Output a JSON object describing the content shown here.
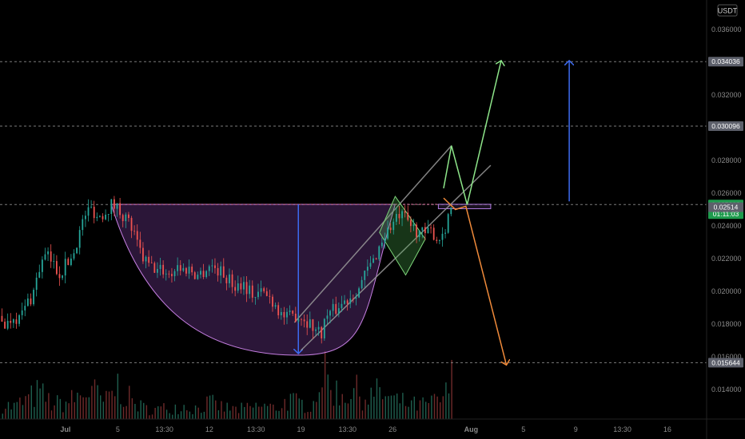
{
  "chart_data": {
    "type": "candlestick",
    "currency": "USDT",
    "y_range": [
      0.0122,
      0.0378
    ],
    "y_ticks": [
      "0.036000",
      "0.034000",
      "0.032000",
      "0.030000",
      "0.028000",
      "0.026000",
      "0.024000",
      "0.022000",
      "0.020000",
      "0.018000",
      "0.016000",
      "0.014000"
    ],
    "x_ticks": [
      {
        "label": "Jul",
        "day": 0,
        "bold": true
      },
      {
        "label": "5",
        "day": 4
      },
      {
        "label": "13:30",
        "day": 7.56
      },
      {
        "label": "12",
        "day": 11
      },
      {
        "label": "13:30",
        "day": 14.56
      },
      {
        "label": "19",
        "day": 18
      },
      {
        "label": "13:30",
        "day": 21.56
      },
      {
        "label": "26",
        "day": 25
      },
      {
        "label": "Aug",
        "day": 31,
        "bold": true
      },
      {
        "label": "5",
        "day": 35
      },
      {
        "label": "9",
        "day": 39
      },
      {
        "label": "13:30",
        "day": 42.56
      },
      {
        "label": "16",
        "day": 46
      }
    ],
    "x_range_days": [
      -5,
      49
    ],
    "horizontal_levels": [
      {
        "value": 0.034036,
        "label": "0.034036",
        "badge": "#5d606b",
        "line": "#9a9a9a"
      },
      {
        "value": 0.030096,
        "label": "0.030096",
        "badge": "#5d606b",
        "line": "#9a9a9a"
      },
      {
        "value": 0.025303,
        "label": "0.025303",
        "sub": "01:11:03",
        "badge": "#1e9b4d",
        "line": "#9a9a9a"
      },
      {
        "value": 0.02514,
        "label": "0.02514",
        "badge": "#5d606b",
        "line": null
      },
      {
        "value": 0.015644,
        "label": "0.015644",
        "badge": "#5d606b",
        "line": "#9a9a9a"
      }
    ],
    "price_path": [
      [
        -5,
        0.0185
      ],
      [
        -4.5,
        0.0179
      ],
      [
        -4,
        0.0186
      ],
      [
        -3.5,
        0.0183
      ],
      [
        -3,
        0.0192
      ],
      [
        -2.5,
        0.0198
      ],
      [
        -2,
        0.0214
      ],
      [
        -1.5,
        0.0222
      ],
      [
        -1,
        0.0218
      ],
      [
        -0.5,
        0.0211
      ],
      [
        0,
        0.0216
      ],
      [
        0.5,
        0.0221
      ],
      [
        1,
        0.0234
      ],
      [
        1.5,
        0.0247
      ],
      [
        2,
        0.0251
      ],
      [
        2.5,
        0.0245
      ],
      [
        3,
        0.0249
      ],
      [
        3.5,
        0.0253
      ],
      [
        4,
        0.0251
      ],
      [
        4.5,
        0.0246
      ],
      [
        5,
        0.024
      ],
      [
        5.5,
        0.0228
      ],
      [
        6,
        0.0219
      ],
      [
        6.5,
        0.0215
      ],
      [
        7,
        0.0213
      ],
      [
        7.5,
        0.0213
      ],
      [
        8,
        0.021
      ],
      [
        8.5,
        0.0216
      ],
      [
        9,
        0.0213
      ],
      [
        9.5,
        0.0214
      ],
      [
        10,
        0.021
      ],
      [
        10.5,
        0.0212
      ],
      [
        11,
        0.0216
      ],
      [
        11.5,
        0.0214
      ],
      [
        12,
        0.0211
      ],
      [
        12.5,
        0.0207
      ],
      [
        13,
        0.0203
      ],
      [
        13.5,
        0.0206
      ],
      [
        14,
        0.0201
      ],
      [
        14.5,
        0.0197
      ],
      [
        15,
        0.02
      ],
      [
        15.5,
        0.0197
      ],
      [
        16,
        0.0193
      ],
      [
        16.5,
        0.0186
      ],
      [
        17,
        0.0183
      ],
      [
        17.5,
        0.0186
      ],
      [
        18,
        0.0185
      ],
      [
        18.5,
        0.0182
      ],
      [
        19,
        0.0178
      ],
      [
        19.5,
        0.0174
      ],
      [
        20,
        0.0186
      ],
      [
        20.5,
        0.0188
      ],
      [
        21,
        0.0192
      ],
      [
        21.5,
        0.0195
      ],
      [
        22,
        0.0199
      ],
      [
        22.5,
        0.0203
      ],
      [
        23,
        0.0212
      ],
      [
        23.5,
        0.0218
      ],
      [
        24,
        0.0228
      ],
      [
        24.5,
        0.0236
      ],
      [
        25,
        0.0241
      ],
      [
        25.5,
        0.0246
      ],
      [
        26,
        0.0244
      ],
      [
        26.5,
        0.0239
      ],
      [
        27,
        0.0237
      ],
      [
        27.5,
        0.0234
      ],
      [
        28,
        0.0237
      ],
      [
        28.5,
        0.0231
      ],
      [
        29,
        0.0239
      ],
      [
        29.5,
        0.0253
      ]
    ],
    "volume_path": [
      [
        -5,
        0.3
      ],
      [
        -4,
        0.22
      ],
      [
        -3,
        0.35
      ],
      [
        -2,
        0.5
      ],
      [
        -1,
        0.28
      ],
      [
        0,
        0.3
      ],
      [
        1,
        0.42
      ],
      [
        2,
        0.55
      ],
      [
        3,
        0.3
      ],
      [
        4,
        0.62
      ],
      [
        5,
        0.35
      ],
      [
        6,
        0.2
      ],
      [
        7,
        0.18
      ],
      [
        8,
        0.22
      ],
      [
        9,
        0.25
      ],
      [
        10,
        0.2
      ],
      [
        11,
        0.3
      ],
      [
        12,
        0.22
      ],
      [
        13,
        0.18
      ],
      [
        14,
        0.2
      ],
      [
        15,
        0.25
      ],
      [
        16,
        0.2
      ],
      [
        17,
        0.35
      ],
      [
        18,
        0.28
      ],
      [
        19,
        0.3
      ],
      [
        19.5,
        0.95
      ],
      [
        20,
        0.7
      ],
      [
        21,
        0.45
      ],
      [
        22,
        0.55
      ],
      [
        23,
        0.4
      ],
      [
        24,
        0.5
      ],
      [
        25,
        0.35
      ],
      [
        26,
        0.3
      ],
      [
        27,
        0.25
      ],
      [
        28,
        0.3
      ],
      [
        29,
        0.4
      ],
      [
        29.5,
        0.75
      ]
    ],
    "annotations": {
      "cup": {
        "start": [
          3.5,
          0.02532
        ],
        "bottom": [
          17.8,
          0.0161
        ],
        "end": [
          25.2,
          0.02532
        ],
        "fill": "#7b3fa0",
        "stroke": "#c47ee0"
      },
      "cup_depth_arrow": {
        "from": [
          17.8,
          0.02532
        ],
        "to": [
          17.8,
          0.0161
        ],
        "color": "#3d6bf0"
      },
      "rim_line": {
        "from": [
          3.5,
          0.02532
        ],
        "to": [
          32.5,
          0.02532
        ],
        "color": "#e070a0"
      },
      "rim_box": {
        "x": [
          28.5,
          32.5
        ],
        "y": [
          0.02505,
          0.02532
        ],
        "color": "#b07ae0"
      },
      "channel_upper": {
        "from": [
          17.5,
          0.0181
        ],
        "to": [
          29.5,
          0.0289
        ],
        "color": "#9a9a9a"
      },
      "channel_lower": {
        "from": [
          18,
          0.0164
        ],
        "to": [
          32.5,
          0.0277
        ],
        "color": "#9a9a9a"
      },
      "flag_box": [
        [
          25.2,
          0.0258
        ],
        [
          27.5,
          0.0232
        ],
        [
          26,
          0.021
        ],
        [
          24,
          0.0236
        ]
      ],
      "zigzag_green": [
        [
          28.9,
          0.0263
        ],
        [
          29.5,
          0.0289
        ],
        [
          30.7,
          0.0253
        ],
        [
          33.3,
          0.0341
        ]
      ],
      "zigzag_orange": [
        [
          28.9,
          0.0257
        ],
        [
          29.8,
          0.025
        ],
        [
          30.6,
          0.0252
        ],
        [
          33.7,
          0.0155
        ]
      ],
      "target_arrow": {
        "from": [
          38.5,
          0.0255
        ],
        "to": [
          38.5,
          0.0341
        ],
        "color": "#3d6bf0"
      }
    },
    "colors": {
      "up": "#26a69a",
      "down": "#ef5350",
      "green_line": "#8ee68a",
      "orange_line": "#f08a3a",
      "blue": "#3d6bf0"
    }
  }
}
